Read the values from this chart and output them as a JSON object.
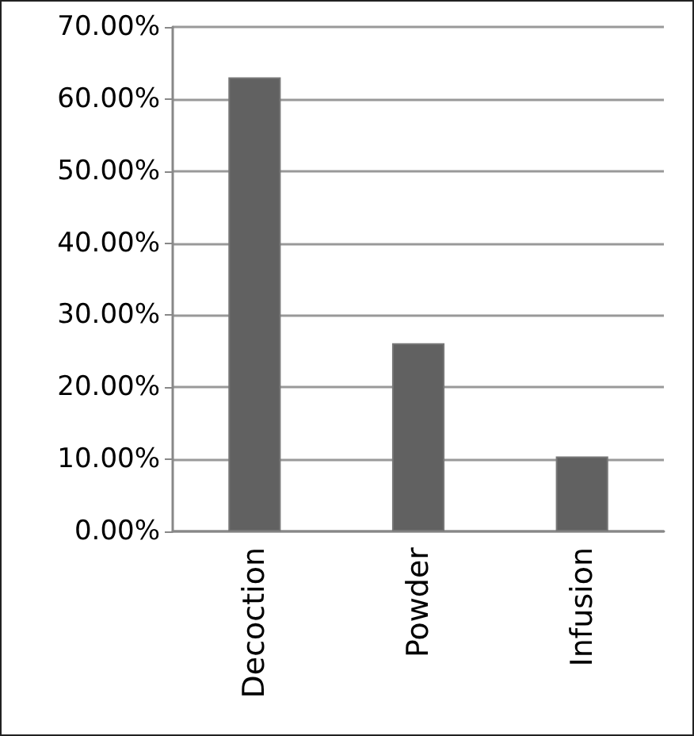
{
  "chart_data": {
    "type": "bar",
    "categories": [
      "Decoction",
      "Powder",
      "Infusion"
    ],
    "values": [
      63.0,
      26.1,
      10.4
    ],
    "color": "#616161",
    "ylim": [
      0,
      70
    ],
    "yticks": [
      {
        "value": 0,
        "label": "0.00%"
      },
      {
        "value": 10,
        "label": "10.00%"
      },
      {
        "value": 20,
        "label": "20.00%"
      },
      {
        "value": 30,
        "label": "30.00%"
      },
      {
        "value": 40,
        "label": "40.00%"
      },
      {
        "value": 50,
        "label": "50.00%"
      },
      {
        "value": 60,
        "label": "60.00%"
      },
      {
        "value": 70,
        "label": "70.00%"
      }
    ],
    "grid": "y"
  }
}
